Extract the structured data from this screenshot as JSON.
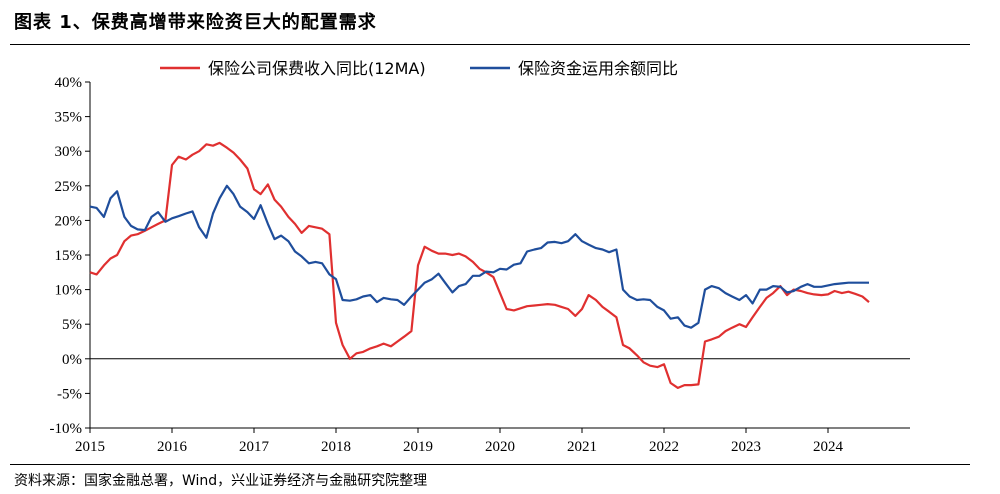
{
  "header": {
    "title": "图表 1、保费高增带来险资巨大的配置需求"
  },
  "footer": {
    "source": "资料来源：国家金融总署，Wind，兴业证券经济与金融研究院整理"
  },
  "chart_data": {
    "type": "line",
    "title": "",
    "xlabel": "",
    "ylabel": "",
    "ylim": [
      -10,
      40
    ],
    "xlim": [
      2015.0,
      2025.0
    ],
    "yticks": [
      "-10%",
      "-5%",
      "0%",
      "5%",
      "10%",
      "15%",
      "20%",
      "25%",
      "30%",
      "35%",
      "40%"
    ],
    "ytick_values": [
      -10,
      -5,
      0,
      5,
      10,
      15,
      20,
      25,
      30,
      35,
      40
    ],
    "xticks": [
      "2015",
      "2016",
      "2017",
      "2018",
      "2019",
      "2020",
      "2021",
      "2022",
      "2023",
      "2024"
    ],
    "xtick_values": [
      2015,
      2016,
      2017,
      2018,
      2019,
      2020,
      2021,
      2022,
      2023,
      2024
    ],
    "grid": false,
    "legend_position": "top",
    "series": [
      {
        "name": "保险公司保费收入同比(12MA)",
        "color": "#e03030",
        "points": [
          [
            2015.0,
            12.5
          ],
          [
            2015.08,
            12.2
          ],
          [
            2015.17,
            13.5
          ],
          [
            2015.25,
            14.5
          ],
          [
            2015.33,
            15.0
          ],
          [
            2015.42,
            17.0
          ],
          [
            2015.5,
            17.8
          ],
          [
            2015.58,
            18.0
          ],
          [
            2015.67,
            18.5
          ],
          [
            2015.75,
            19.0
          ],
          [
            2015.83,
            19.5
          ],
          [
            2015.92,
            20.0
          ],
          [
            2016.0,
            28.0
          ],
          [
            2016.08,
            29.2
          ],
          [
            2016.17,
            28.8
          ],
          [
            2016.25,
            29.5
          ],
          [
            2016.33,
            30.0
          ],
          [
            2016.42,
            31.0
          ],
          [
            2016.5,
            30.8
          ],
          [
            2016.58,
            31.2
          ],
          [
            2016.67,
            30.5
          ],
          [
            2016.75,
            29.8
          ],
          [
            2016.83,
            28.8
          ],
          [
            2016.92,
            27.5
          ],
          [
            2017.0,
            24.5
          ],
          [
            2017.08,
            23.8
          ],
          [
            2017.17,
            25.2
          ],
          [
            2017.25,
            23.0
          ],
          [
            2017.33,
            22.0
          ],
          [
            2017.42,
            20.5
          ],
          [
            2017.5,
            19.5
          ],
          [
            2017.58,
            18.2
          ],
          [
            2017.67,
            19.2
          ],
          [
            2017.75,
            19.0
          ],
          [
            2017.83,
            18.8
          ],
          [
            2017.92,
            18.0
          ],
          [
            2018.0,
            5.2
          ],
          [
            2018.08,
            2.0
          ],
          [
            2018.17,
            0.0
          ],
          [
            2018.25,
            0.8
          ],
          [
            2018.33,
            1.0
          ],
          [
            2018.42,
            1.5
          ],
          [
            2018.5,
            1.8
          ],
          [
            2018.58,
            2.2
          ],
          [
            2018.67,
            1.8
          ],
          [
            2018.75,
            2.5
          ],
          [
            2018.83,
            3.2
          ],
          [
            2018.92,
            4.0
          ],
          [
            2019.0,
            13.5
          ],
          [
            2019.08,
            16.2
          ],
          [
            2019.17,
            15.6
          ],
          [
            2019.25,
            15.2
          ],
          [
            2019.33,
            15.2
          ],
          [
            2019.42,
            15.0
          ],
          [
            2019.5,
            15.2
          ],
          [
            2019.58,
            14.8
          ],
          [
            2019.67,
            14.0
          ],
          [
            2019.75,
            13.0
          ],
          [
            2019.83,
            12.5
          ],
          [
            2019.92,
            11.8
          ],
          [
            2020.0,
            9.5
          ],
          [
            2020.08,
            7.2
          ],
          [
            2020.17,
            7.0
          ],
          [
            2020.25,
            7.3
          ],
          [
            2020.33,
            7.6
          ],
          [
            2020.42,
            7.7
          ],
          [
            2020.5,
            7.8
          ],
          [
            2020.58,
            7.9
          ],
          [
            2020.67,
            7.8
          ],
          [
            2020.75,
            7.5
          ],
          [
            2020.83,
            7.2
          ],
          [
            2020.92,
            6.2
          ],
          [
            2021.0,
            7.2
          ],
          [
            2021.08,
            9.2
          ],
          [
            2021.17,
            8.5
          ],
          [
            2021.25,
            7.5
          ],
          [
            2021.33,
            6.8
          ],
          [
            2021.42,
            6.0
          ],
          [
            2021.5,
            2.0
          ],
          [
            2021.58,
            1.5
          ],
          [
            2021.67,
            0.5
          ],
          [
            2021.75,
            -0.5
          ],
          [
            2021.83,
            -1.0
          ],
          [
            2021.92,
            -1.2
          ],
          [
            2022.0,
            -0.8
          ],
          [
            2022.08,
            -3.5
          ],
          [
            2022.17,
            -4.2
          ],
          [
            2022.25,
            -3.8
          ],
          [
            2022.33,
            -3.8
          ],
          [
            2022.42,
            -3.7
          ],
          [
            2022.5,
            2.5
          ],
          [
            2022.58,
            2.8
          ],
          [
            2022.67,
            3.2
          ],
          [
            2022.75,
            4.0
          ],
          [
            2022.83,
            4.5
          ],
          [
            2022.92,
            5.0
          ],
          [
            2023.0,
            4.6
          ],
          [
            2023.08,
            6.0
          ],
          [
            2023.17,
            7.5
          ],
          [
            2023.25,
            8.8
          ],
          [
            2023.33,
            9.5
          ],
          [
            2023.42,
            10.5
          ],
          [
            2023.5,
            9.2
          ],
          [
            2023.58,
            10.0
          ],
          [
            2023.67,
            9.8
          ],
          [
            2023.75,
            9.5
          ],
          [
            2023.83,
            9.3
          ],
          [
            2023.92,
            9.2
          ],
          [
            2024.0,
            9.3
          ],
          [
            2024.08,
            9.8
          ],
          [
            2024.17,
            9.5
          ],
          [
            2024.25,
            9.7
          ],
          [
            2024.33,
            9.4
          ],
          [
            2024.42,
            9.0
          ],
          [
            2024.5,
            8.2
          ]
        ]
      },
      {
        "name": "保险资金运用余额同比",
        "color": "#1f4e9c",
        "points": [
          [
            2015.0,
            22.0
          ],
          [
            2015.08,
            21.8
          ],
          [
            2015.17,
            20.5
          ],
          [
            2015.25,
            23.2
          ],
          [
            2015.33,
            24.2
          ],
          [
            2015.42,
            20.5
          ],
          [
            2015.5,
            19.2
          ],
          [
            2015.58,
            18.7
          ],
          [
            2015.67,
            18.6
          ],
          [
            2015.75,
            20.5
          ],
          [
            2015.83,
            21.2
          ],
          [
            2015.92,
            19.8
          ],
          [
            2016.0,
            20.3
          ],
          [
            2016.08,
            20.6
          ],
          [
            2016.17,
            21.0
          ],
          [
            2016.25,
            21.3
          ],
          [
            2016.33,
            19.0
          ],
          [
            2016.42,
            17.5
          ],
          [
            2016.5,
            21.0
          ],
          [
            2016.58,
            23.2
          ],
          [
            2016.67,
            25.0
          ],
          [
            2016.75,
            23.8
          ],
          [
            2016.83,
            22.0
          ],
          [
            2016.92,
            21.2
          ],
          [
            2017.0,
            20.2
          ],
          [
            2017.08,
            22.2
          ],
          [
            2017.17,
            19.5
          ],
          [
            2017.25,
            17.3
          ],
          [
            2017.33,
            17.8
          ],
          [
            2017.42,
            17.0
          ],
          [
            2017.5,
            15.5
          ],
          [
            2017.58,
            14.8
          ],
          [
            2017.67,
            13.8
          ],
          [
            2017.75,
            14.0
          ],
          [
            2017.83,
            13.8
          ],
          [
            2017.92,
            12.2
          ],
          [
            2018.0,
            11.5
          ],
          [
            2018.08,
            8.5
          ],
          [
            2018.17,
            8.4
          ],
          [
            2018.25,
            8.6
          ],
          [
            2018.33,
            9.0
          ],
          [
            2018.42,
            9.2
          ],
          [
            2018.5,
            8.2
          ],
          [
            2018.58,
            8.8
          ],
          [
            2018.67,
            8.6
          ],
          [
            2018.75,
            8.5
          ],
          [
            2018.83,
            7.8
          ],
          [
            2018.92,
            9.0
          ],
          [
            2019.0,
            10.0
          ],
          [
            2019.08,
            11.0
          ],
          [
            2019.17,
            11.5
          ],
          [
            2019.25,
            12.3
          ],
          [
            2019.33,
            11.0
          ],
          [
            2019.42,
            9.6
          ],
          [
            2019.5,
            10.5
          ],
          [
            2019.58,
            10.8
          ],
          [
            2019.67,
            12.0
          ],
          [
            2019.75,
            12.0
          ],
          [
            2019.83,
            12.6
          ],
          [
            2019.92,
            12.5
          ],
          [
            2020.0,
            13.0
          ],
          [
            2020.08,
            12.9
          ],
          [
            2020.17,
            13.6
          ],
          [
            2020.25,
            13.8
          ],
          [
            2020.33,
            15.5
          ],
          [
            2020.42,
            15.8
          ],
          [
            2020.5,
            16.0
          ],
          [
            2020.58,
            16.8
          ],
          [
            2020.67,
            16.9
          ],
          [
            2020.75,
            16.7
          ],
          [
            2020.83,
            17.0
          ],
          [
            2020.92,
            18.0
          ],
          [
            2021.0,
            17.0
          ],
          [
            2021.08,
            16.5
          ],
          [
            2021.17,
            16.0
          ],
          [
            2021.25,
            15.8
          ],
          [
            2021.33,
            15.4
          ],
          [
            2021.42,
            15.8
          ],
          [
            2021.5,
            10.0
          ],
          [
            2021.58,
            9.0
          ],
          [
            2021.67,
            8.5
          ],
          [
            2021.75,
            8.6
          ],
          [
            2021.83,
            8.5
          ],
          [
            2021.92,
            7.5
          ],
          [
            2022.0,
            7.0
          ],
          [
            2022.08,
            5.8
          ],
          [
            2022.17,
            6.0
          ],
          [
            2022.25,
            4.8
          ],
          [
            2022.33,
            4.5
          ],
          [
            2022.42,
            5.2
          ],
          [
            2022.5,
            10.0
          ],
          [
            2022.58,
            10.5
          ],
          [
            2022.67,
            10.2
          ],
          [
            2022.75,
            9.5
          ],
          [
            2022.83,
            9.0
          ],
          [
            2022.92,
            8.5
          ],
          [
            2023.0,
            9.2
          ],
          [
            2023.08,
            8.0
          ],
          [
            2023.17,
            10.0
          ],
          [
            2023.25,
            10.0
          ],
          [
            2023.33,
            10.5
          ],
          [
            2023.42,
            10.4
          ],
          [
            2023.5,
            9.6
          ],
          [
            2023.58,
            9.8
          ],
          [
            2023.67,
            10.4
          ],
          [
            2023.75,
            10.8
          ],
          [
            2023.83,
            10.4
          ],
          [
            2023.92,
            10.4
          ],
          [
            2024.0,
            10.6
          ],
          [
            2024.08,
            10.8
          ],
          [
            2024.17,
            10.9
          ],
          [
            2024.25,
            11.0
          ],
          [
            2024.33,
            11.0
          ],
          [
            2024.42,
            11.0
          ],
          [
            2024.5,
            11.0
          ]
        ]
      }
    ]
  }
}
